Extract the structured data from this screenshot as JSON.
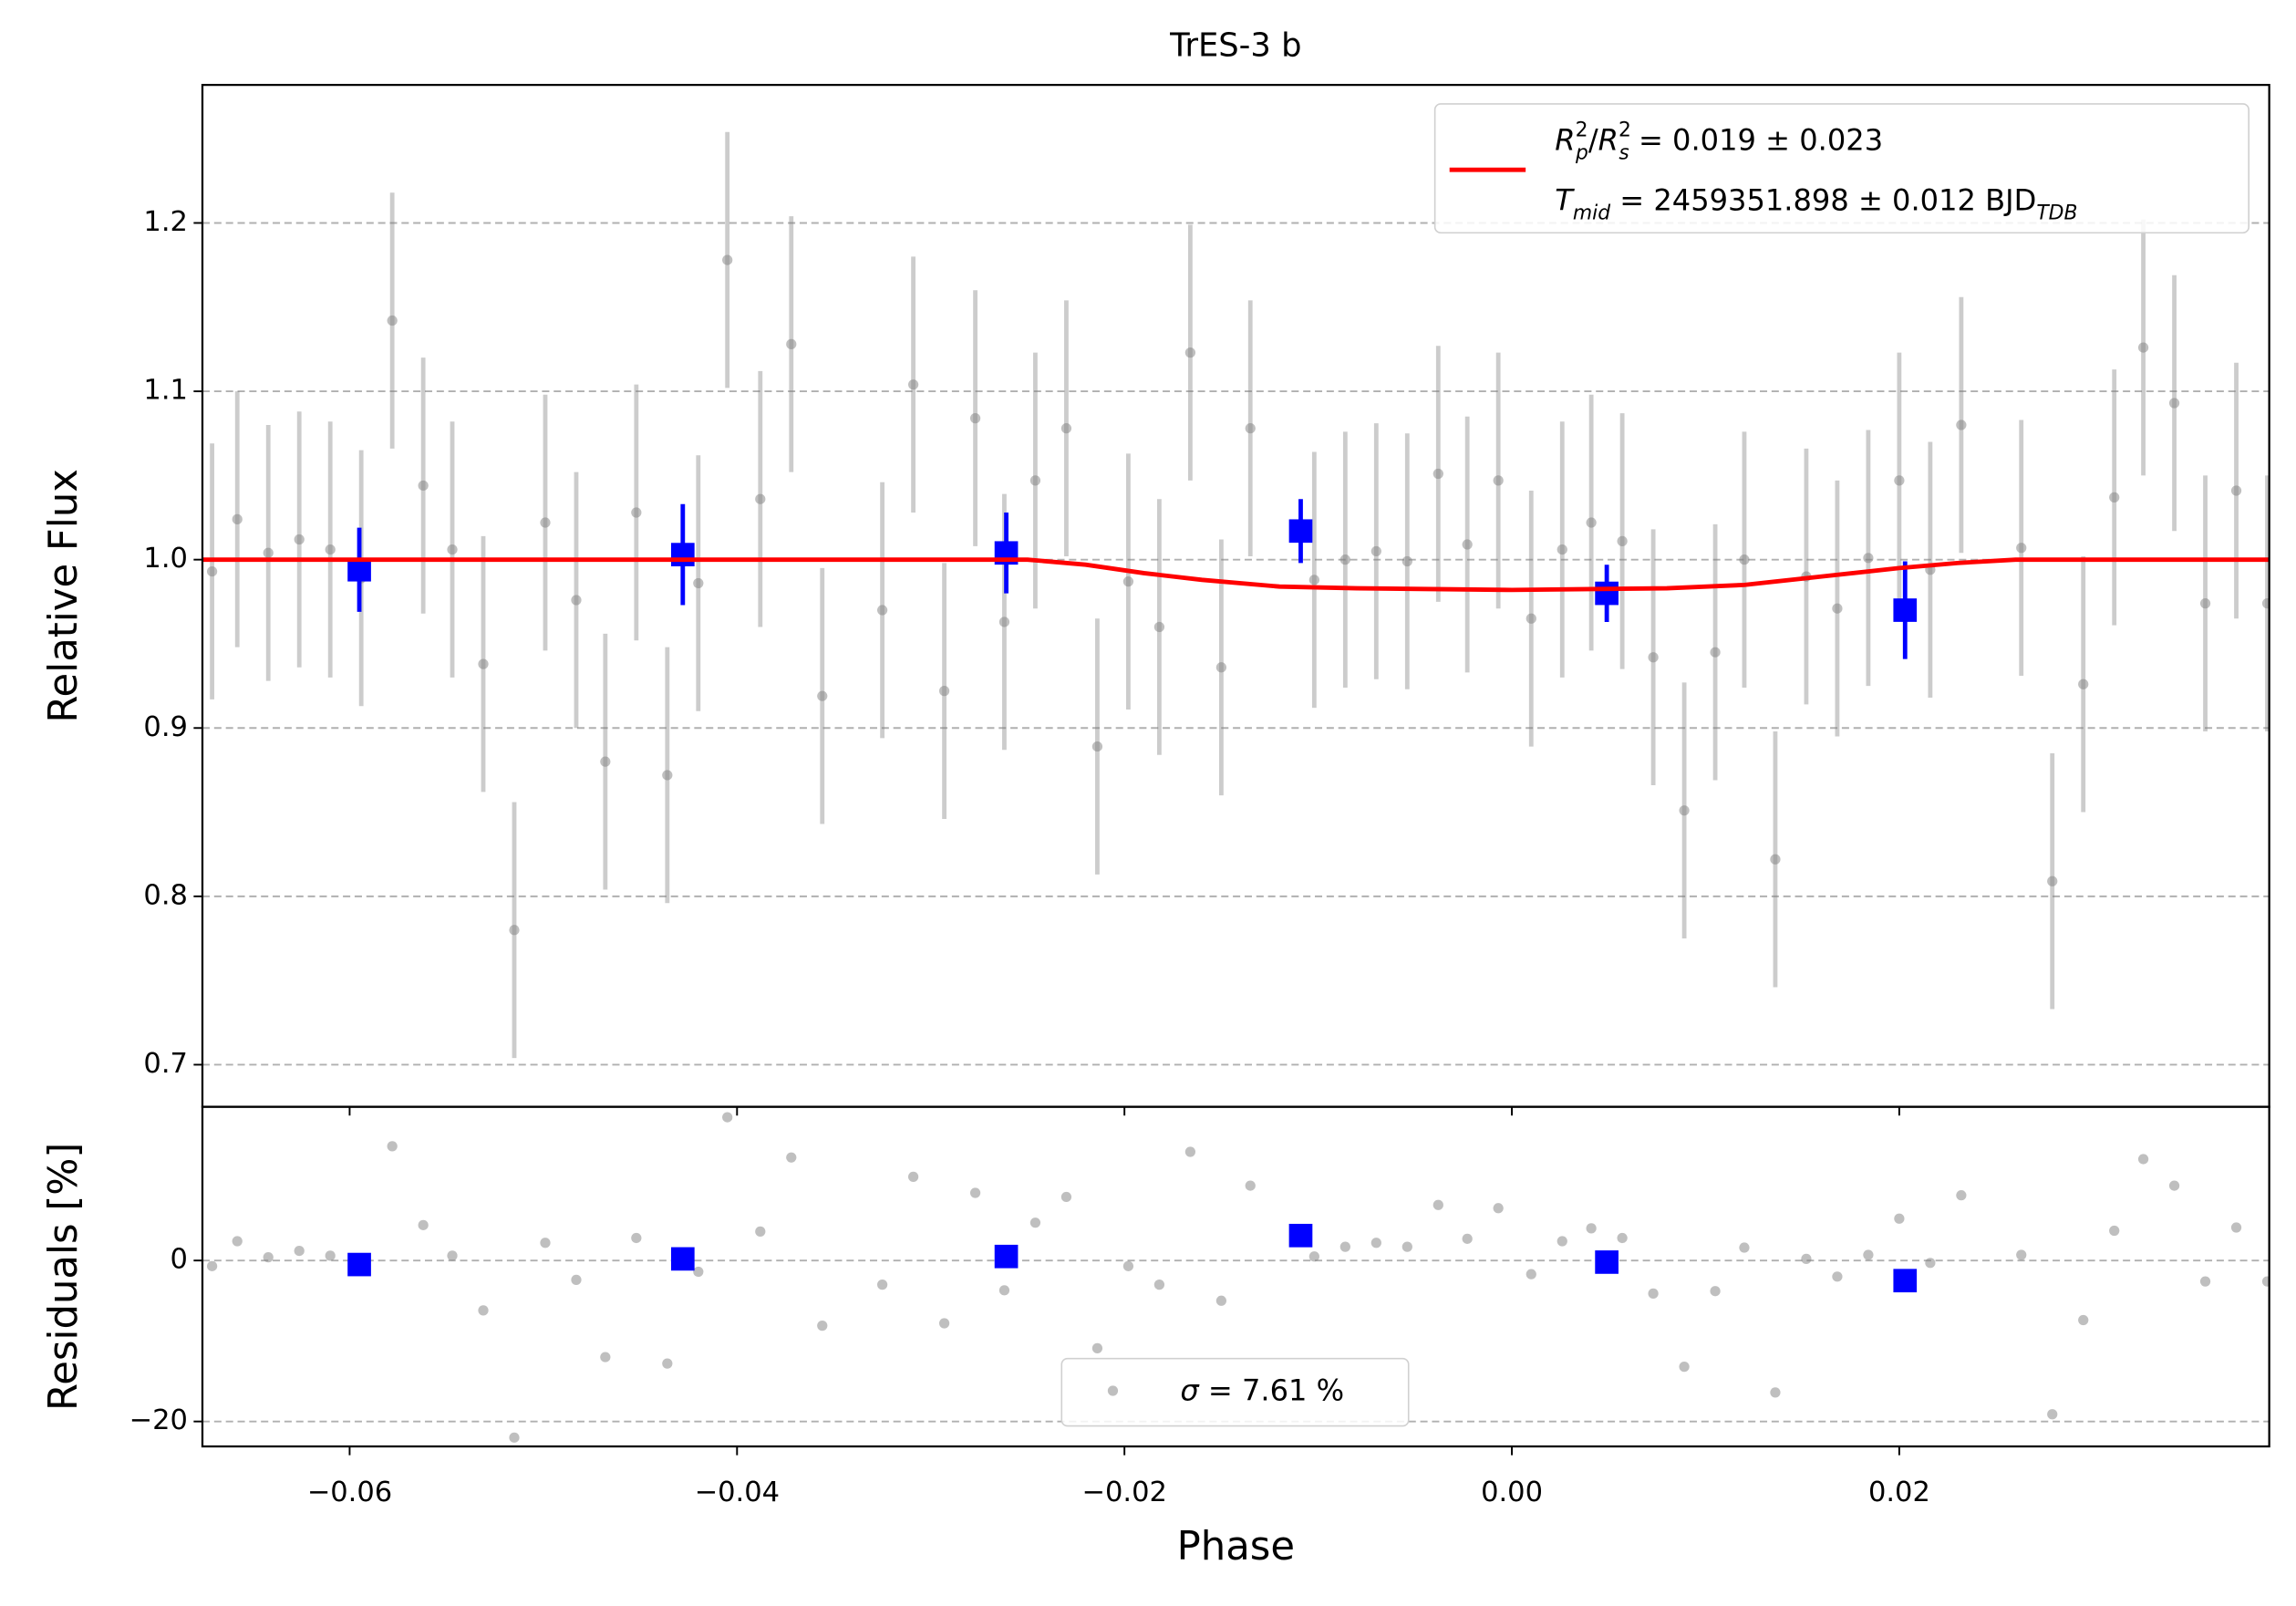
{
  "chart_data": [
    {
      "type": "errorbar",
      "title": "TrES-3 b",
      "ylabel": "Relative Flux",
      "xlim": [
        -0.0676,
        0.0391
      ],
      "ylim": [
        0.675,
        1.282
      ],
      "yticks": [
        0.7,
        0.8,
        0.9,
        {
          "value": 1,
          "label": "1.0"
        },
        1.1,
        1.2
      ],
      "grid": true,
      "legend": "upper right",
      "series": [
        {
          "kind": "points",
          "color": "#808080",
          "x": [
            -0.0671,
            -0.0658,
            -0.0642,
            -0.0626,
            -0.061,
            -0.0594,
            -0.0578,
            -0.0562,
            -0.0547,
            -0.0531,
            -0.0515,
            -0.0499,
            -0.0483,
            -0.0468,
            -0.0452,
            -0.0436,
            -0.042,
            -0.0405,
            -0.0388,
            -0.0372,
            -0.0356,
            -0.0325,
            -0.0309,
            -0.0293,
            -0.0277,
            -0.0262,
            -0.0246,
            -0.023,
            -0.0214,
            -0.0198,
            -0.0182,
            -0.0166,
            -0.015,
            -0.0135,
            -0.0102,
            -0.0086,
            -0.007,
            -0.0054,
            -0.0038,
            -0.0023,
            -0.0007,
            0.001,
            0.0026,
            0.0041,
            0.0057,
            0.0073,
            0.0089,
            0.0105,
            0.012,
            0.0136,
            0.0152,
            0.0168,
            0.0184,
            0.02,
            0.0216,
            0.0232,
            0.0263,
            0.0279,
            0.0295,
            0.0311,
            0.0326,
            0.0342,
            0.0358,
            0.0374,
            0.039
          ],
          "values": [
            0.993,
            1.024,
            1.004,
            1.012,
            1.006,
            0.989,
            1.142,
            1.044,
            1.006,
            0.938,
            0.78,
            1.022,
            0.976,
            0.88,
            1.028,
            0.872,
            0.986,
            1.178,
            1.036,
            1.128,
            0.919,
            0.97,
            1.104,
            0.922,
            1.084,
            0.963,
            1.047,
            1.078,
            0.889,
            0.987,
            0.96,
            1.123,
            0.936,
            1.078,
            0.988,
            1.0,
            1.005,
            0.999,
            1.051,
            1.009,
            1.047,
            0.965,
            1.006,
            1.022,
            1.011,
            0.942,
            0.851,
            0.945,
            1.0,
            0.822,
            0.99,
            0.971,
            1.001,
            1.047,
            0.994,
            1.08,
            1.007,
            0.809,
            0.926,
            1.037,
            1.126,
            1.093,
            0.974,
            1.041,
            0.974
          ],
          "errors": [
            0.076,
            0.076,
            0.076,
            0.076,
            0.076,
            0.076,
            0.076,
            0.076,
            0.076,
            0.076,
            0.076,
            0.076,
            0.076,
            0.076,
            0.076,
            0.076,
            0.076,
            0.076,
            0.076,
            0.076,
            0.076,
            0.076,
            0.076,
            0.076,
            0.076,
            0.076,
            0.076,
            0.076,
            0.076,
            0.076,
            0.076,
            0.076,
            0.076,
            0.076,
            0.076,
            0.076,
            0.076,
            0.076,
            0.076,
            0.076,
            0.076,
            0.076,
            0.076,
            0.076,
            0.076,
            0.076,
            0.076,
            0.076,
            0.076,
            0.076,
            0.076,
            0.076,
            0.076,
            0.076,
            0.076,
            0.076,
            0.076,
            0.076,
            0.076,
            0.076,
            0.076,
            0.076,
            0.076,
            0.076,
            0.076
          ]
        },
        {
          "kind": "binned",
          "color": "#0000ff",
          "x": [
            -0.0595,
            -0.0428,
            -0.0261,
            -0.0109,
            0.0049,
            0.0203
          ],
          "values": [
            0.994,
            1.003,
            1.004,
            1.017,
            0.98,
            0.97
          ],
          "errors": [
            0.025,
            0.03,
            0.024,
            0.019,
            0.017,
            0.029
          ]
        },
        {
          "kind": "model",
          "color": "#ff0000",
          "x": [
            -0.0676,
            -0.025,
            -0.022,
            -0.019,
            -0.016,
            -0.012,
            -0.008,
            0,
            0.008,
            0.012,
            0.016,
            0.02,
            0.023,
            0.026,
            0.0391
          ],
          "values": [
            1,
            1,
            0.997,
            0.992,
            0.988,
            0.984,
            0.983,
            0.982,
            0.983,
            0.985,
            0.99,
            0.995,
            0.998,
            1,
            1
          ],
          "label_lines": [
            [
              {
                "t": "R",
                "i": true
              },
              {
                "t": "2",
                "s": "super"
              },
              {
                "t": "p",
                "s": "sub",
                "i": true,
                "back": true
              },
              {
                "t": "/"
              },
              {
                "t": "R",
                "i": true
              },
              {
                "t": "2",
                "s": "super"
              },
              {
                "t": "s",
                "s": "sub",
                "i": true,
                "back": true
              },
              {
                "t": " = 0.019 ± 0.023"
              }
            ],
            [
              {
                "t": "T",
                "i": true
              },
              {
                "t": "mid",
                "s": "sub",
                "i": true
              },
              {
                "t": " = 2459351.898 ± 0.012 BJD"
              },
              {
                "t": "TDB",
                "s": "sub",
                "i": true
              }
            ]
          ]
        }
      ]
    },
    {
      "type": "scatter",
      "xlabel": "Phase",
      "ylabel": "Residuals [%]",
      "xlim": [
        -0.0676,
        0.0391
      ],
      "ylim": [
        -23.1,
        19.1
      ],
      "xticks": [
        {
          "value": -0.06,
          "label": "−0.06"
        },
        {
          "value": -0.04,
          "label": "−0.04"
        },
        {
          "value": -0.02,
          "label": "−0.02"
        },
        {
          "value": 0,
          "label": "0.00"
        },
        {
          "value": 0.02,
          "label": "0.02"
        }
      ],
      "yticks": [
        {
          "value": -20,
          "label": "−20"
        },
        0
      ],
      "grid": true,
      "legend": "lower center",
      "series": [
        {
          "kind": "points",
          "color": "#808080",
          "x": [
            -0.0671,
            -0.0658,
            -0.0642,
            -0.0626,
            -0.061,
            -0.0594,
            -0.0578,
            -0.0562,
            -0.0547,
            -0.0531,
            -0.0515,
            -0.0499,
            -0.0483,
            -0.0468,
            -0.0452,
            -0.0436,
            -0.042,
            -0.0405,
            -0.0388,
            -0.0372,
            -0.0356,
            -0.0325,
            -0.0309,
            -0.0293,
            -0.0277,
            -0.0262,
            -0.0246,
            -0.023,
            -0.0214,
            -0.0198,
            -0.0182,
            -0.0166,
            -0.015,
            -0.0135,
            -0.0102,
            -0.0086,
            -0.007,
            -0.0054,
            -0.0038,
            -0.0023,
            -0.0007,
            0.001,
            0.0026,
            0.0041,
            0.0057,
            0.0073,
            0.0089,
            0.0105,
            0.012,
            0.0136,
            0.0152,
            0.0168,
            0.0184,
            0.02,
            0.0216,
            0.0232,
            0.0263,
            0.0279,
            0.0295,
            0.0311,
            0.0326,
            0.0342,
            0.0358,
            0.0374,
            0.039
          ],
          "values": [
            -0.7,
            2.4,
            0.4,
            1.2,
            0.6,
            -1.1,
            14.2,
            4.4,
            0.6,
            -6.2,
            -22.0,
            2.2,
            -2.4,
            -12.0,
            2.8,
            -12.8,
            -1.4,
            17.8,
            3.6,
            12.8,
            -8.1,
            -3.0,
            10.4,
            -7.8,
            8.4,
            -3.7,
            4.7,
            7.9,
            -10.9,
            -0.7,
            -3.0,
            13.5,
            -5.0,
            9.3,
            0.5,
            1.7,
            2.2,
            1.7,
            6.9,
            2.7,
            6.5,
            -1.7,
            2.4,
            4.0,
            2.8,
            -4.1,
            -13.2,
            -3.8,
            1.6,
            -16.4,
            0.2,
            -2.0,
            0.7,
            5.2,
            -0.3,
            8.1,
            0.7,
            -19.1,
            -7.4,
            3.7,
            12.6,
            9.3,
            -2.6,
            4.1,
            -2.6
          ],
          "label_parts": [
            {
              "t": "σ",
              "i": true
            },
            {
              "t": " = 7.61 %"
            }
          ]
        },
        {
          "kind": "binned",
          "color": "#0000ff",
          "x": [
            -0.0595,
            -0.0428,
            -0.0261,
            -0.0109,
            0.0049,
            0.0203
          ],
          "values": [
            -0.5,
            0.2,
            0.5,
            3.1,
            -0.2,
            -2.5
          ]
        }
      ]
    }
  ]
}
